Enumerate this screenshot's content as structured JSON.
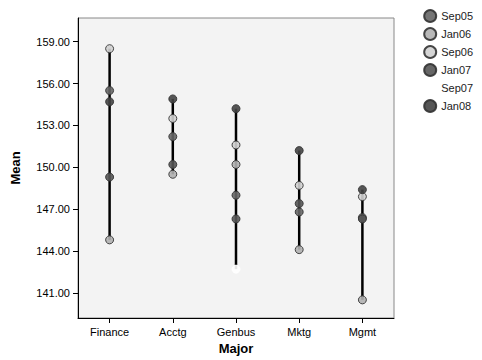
{
  "chart_data": {
    "type": "scatter",
    "x_label": "Major",
    "y_label": "Mean",
    "categories": [
      "Finance",
      "Acctg",
      "Genbus",
      "Mktg",
      "Mgmt"
    ],
    "series": [
      {
        "name": "Sep05",
        "color": "#666666",
        "marker": "circle",
        "values": [
          155.5,
          152.2,
          148.0,
          146.8,
          146.4
        ]
      },
      {
        "name": "Jan06",
        "color": "#b0b0b0",
        "marker": "circle",
        "values": [
          144.8,
          149.5,
          150.2,
          144.1,
          140.5
        ]
      },
      {
        "name": "Sep06",
        "color": "#d0d0d0",
        "marker": "circle",
        "values": [
          158.5,
          153.5,
          151.6,
          148.7,
          147.9
        ]
      },
      {
        "name": "Jan07",
        "color": "#555555",
        "marker": "circle",
        "values": [
          149.3,
          150.2,
          146.3,
          147.4,
          146.3
        ]
      },
      {
        "name": "Sep07",
        "color": "#ffffff",
        "marker": "circle",
        "values": [
          null,
          null,
          142.7,
          null,
          null
        ]
      },
      {
        "name": "Jan08",
        "color": "#444444",
        "marker": "circle",
        "values": [
          154.7,
          154.9,
          154.2,
          151.2,
          148.4
        ]
      }
    ],
    "ylim": [
      139.2,
      160.7
    ],
    "yticks": [
      {
        "value": 141,
        "label": "141.00"
      },
      {
        "value": 144,
        "label": "144.00"
      },
      {
        "value": 147,
        "label": "147.00"
      },
      {
        "value": 150,
        "label": "150.00"
      },
      {
        "value": 153,
        "label": "153.00"
      },
      {
        "value": 156,
        "label": "156.00"
      },
      {
        "value": 159,
        "label": "159.00"
      }
    ],
    "grid": false,
    "legend": "right"
  }
}
